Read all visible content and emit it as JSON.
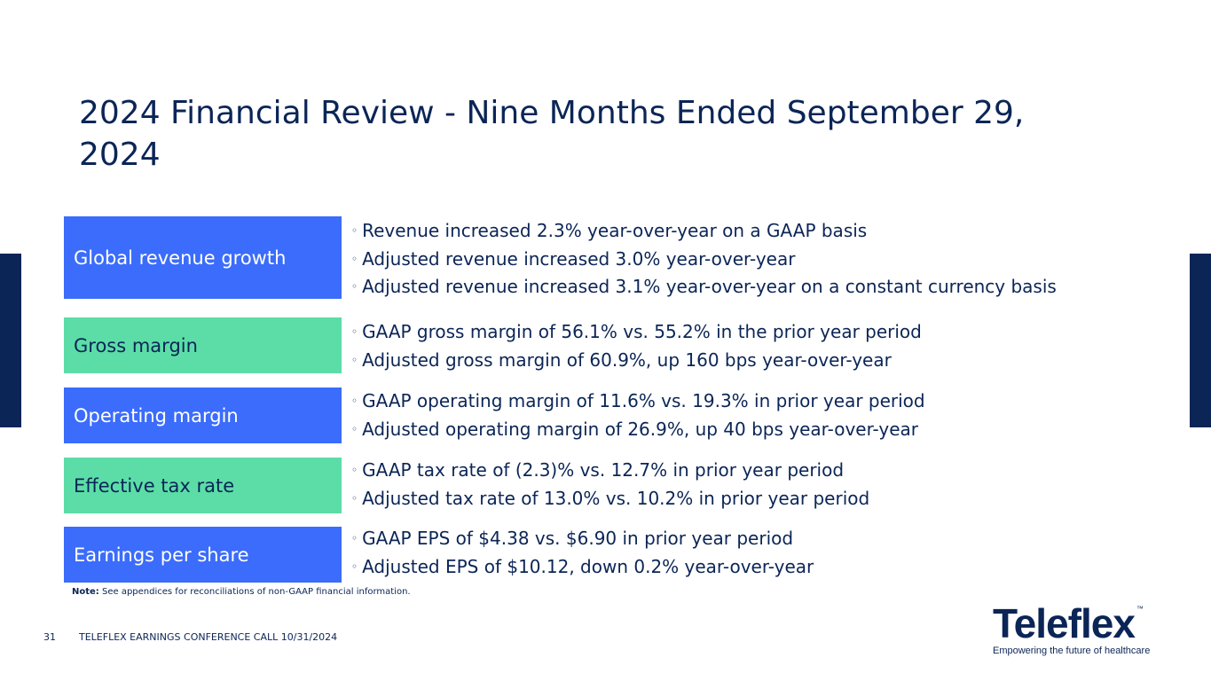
{
  "slide": {
    "title": "2024 Financial Review - Nine Months Ended September 29, 2024",
    "page_number": "31",
    "footer": "TELEFLEX EARNINGS CONFERENCE CALL 10/31/2024",
    "note_label": "Note:",
    "note_text": " See appendices for reconciliations of non-GAAP financial information."
  },
  "colors": {
    "navy": "#0b2556",
    "blue": "#3b6cfb",
    "green": "#5cdda7"
  },
  "rows": [
    {
      "label": "Global revenue growth",
      "bullets": [
        "Revenue increased 2.3% year-over-year on a GAAP basis",
        "Adjusted revenue increased 3.0% year-over-year",
        "Adjusted revenue increased 3.1% year-over-year on a constant currency basis"
      ]
    },
    {
      "label": "Gross margin",
      "bullets": [
        "GAAP gross margin of 56.1% vs. 55.2% in the prior year period",
        "Adjusted gross margin of 60.9%, up 160 bps year-over-year"
      ]
    },
    {
      "label": "Operating margin",
      "bullets": [
        "GAAP operating margin of 11.6% vs. 19.3% in prior year period",
        "Adjusted operating margin of 26.9%, up 40 bps year-over-year"
      ]
    },
    {
      "label": "Effective tax rate",
      "bullets": [
        "GAAP tax rate of (2.3)% vs. 12.7% in prior year period",
        "Adjusted tax rate of 13.0% vs. 10.2% in prior year period"
      ]
    },
    {
      "label": "Earnings per share",
      "bullets": [
        "GAAP EPS of $4.38 vs. $6.90 in prior year period",
        "Adjusted EPS of $10.12, down 0.2% year-over-year"
      ]
    }
  ],
  "bullet_glyph": "◦",
  "logo": {
    "wordmark": "Teleflex",
    "trademark": "™",
    "tagline": "Empowering the future of healthcare"
  }
}
